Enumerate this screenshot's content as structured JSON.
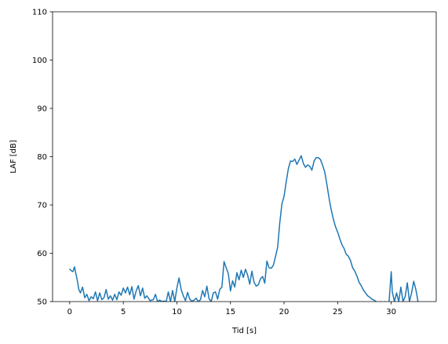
{
  "chart_data": {
    "type": "line",
    "title": "",
    "xlabel": "Tid [s]",
    "ylabel": "LAF [dB]",
    "xlim": [
      -1.6,
      34.2
    ],
    "ylim": [
      50,
      110
    ],
    "xticks": [
      0,
      5,
      10,
      15,
      20,
      25,
      30
    ],
    "yticks": [
      50,
      60,
      70,
      80,
      90,
      100,
      110
    ],
    "grid": false,
    "legend": "none",
    "series": [
      {
        "color": "#1f77b4",
        "x": [
          0.0,
          0.2,
          0.3,
          0.45,
          0.55,
          0.7,
          0.85,
          1.0,
          1.2,
          1.4,
          1.6,
          1.8,
          2.0,
          2.2,
          2.4,
          2.6,
          2.8,
          3.0,
          3.2,
          3.4,
          3.6,
          3.8,
          4.0,
          4.2,
          4.4,
          4.6,
          4.8,
          5.0,
          5.2,
          5.4,
          5.6,
          5.8,
          6.0,
          6.2,
          6.4,
          6.6,
          6.8,
          7.0,
          7.2,
          7.5,
          7.8,
          8.0,
          8.2,
          8.4,
          8.6,
          8.8,
          9.0,
          9.2,
          9.4,
          9.6,
          9.8,
          10.0,
          10.2,
          10.4,
          10.6,
          10.8,
          11.0,
          11.2,
          11.4,
          11.6,
          11.8,
          12.0,
          12.2,
          12.4,
          12.6,
          12.8,
          13.0,
          13.2,
          13.4,
          13.6,
          13.8,
          14.0,
          14.2,
          14.4,
          14.6,
          14.8,
          15.0,
          15.2,
          15.4,
          15.6,
          15.8,
          16.0,
          16.2,
          16.4,
          16.6,
          16.8,
          17.0,
          17.2,
          17.4,
          17.6,
          17.8,
          18.0,
          18.2,
          18.4,
          18.6,
          18.8,
          19.0,
          19.2,
          19.4,
          19.6,
          19.8,
          20.0,
          20.2,
          20.4,
          20.6,
          20.8,
          21.0,
          21.2,
          21.4,
          21.6,
          21.8,
          22.0,
          22.2,
          22.4,
          22.6,
          22.8,
          23.0,
          23.2,
          23.4,
          23.6,
          23.8,
          24.0,
          24.2,
          24.4,
          24.6,
          24.8,
          25.0,
          25.2,
          25.4,
          25.6,
          25.8,
          26.0,
          26.2,
          26.4,
          26.6,
          26.8,
          27.0,
          27.2,
          27.4,
          27.6,
          27.8,
          28.0,
          28.2,
          28.4,
          28.6,
          28.8,
          29.0,
          29.2,
          29.4,
          29.6,
          29.8,
          30.0,
          30.1,
          30.3,
          30.5,
          30.7,
          30.9,
          31.1,
          31.3,
          31.5,
          31.7,
          31.9,
          32.1,
          32.3,
          32.5
        ],
        "y": [
          56.7,
          56.3,
          56.2,
          57.2,
          56.0,
          54.5,
          52.5,
          51.8,
          53.0,
          50.8,
          51.5,
          50.2,
          51.0,
          50.6,
          52.0,
          50.2,
          51.8,
          50.4,
          50.8,
          52.5,
          50.5,
          51.2,
          50.3,
          51.5,
          50.4,
          52.0,
          51.3,
          52.8,
          51.8,
          53.0,
          51.4,
          53.1,
          50.5,
          52.2,
          53.3,
          51.2,
          52.8,
          50.7,
          51.2,
          50.2,
          50.4,
          51.5,
          50.0,
          50.3,
          50.0,
          50.1,
          50.0,
          52.0,
          50.0,
          52.3,
          50.0,
          52.8,
          54.9,
          52.5,
          51.2,
          50.2,
          51.9,
          50.5,
          50.1,
          50.3,
          50.7,
          50.0,
          50.4,
          52.3,
          51.0,
          53.2,
          50.6,
          50.0,
          51.8,
          52.0,
          50.5,
          52.5,
          53.0,
          58.3,
          57.0,
          55.8,
          52.2,
          54.3,
          53.0,
          56.0,
          54.5,
          56.5,
          55.0,
          56.7,
          55.5,
          53.6,
          56.3,
          54.0,
          53.2,
          53.5,
          54.7,
          55.2,
          53.8,
          58.4,
          57.0,
          56.9,
          57.5,
          59.3,
          61.2,
          66.3,
          70.2,
          71.8,
          74.8,
          77.5,
          79.1,
          79.0,
          79.5,
          78.4,
          79.3,
          80.2,
          78.6,
          77.8,
          78.3,
          78.0,
          77.2,
          79.1,
          79.8,
          79.8,
          79.4,
          78.2,
          76.8,
          74.2,
          71.4,
          69.0,
          67.1,
          65.5,
          64.4,
          63.0,
          61.8,
          61.0,
          59.8,
          59.4,
          58.5,
          57.0,
          56.3,
          55.3,
          54.0,
          53.3,
          52.4,
          51.8,
          51.2,
          50.9,
          50.5,
          50.3,
          50.0,
          49.0,
          50.0,
          49.0,
          50.0,
          49.0,
          50.0,
          56.2,
          52.0,
          50.0,
          51.8,
          50.0,
          53.0,
          50.0,
          51.0,
          53.9,
          50.0,
          51.8,
          54.2,
          52.5,
          50.0
        ]
      }
    ]
  }
}
